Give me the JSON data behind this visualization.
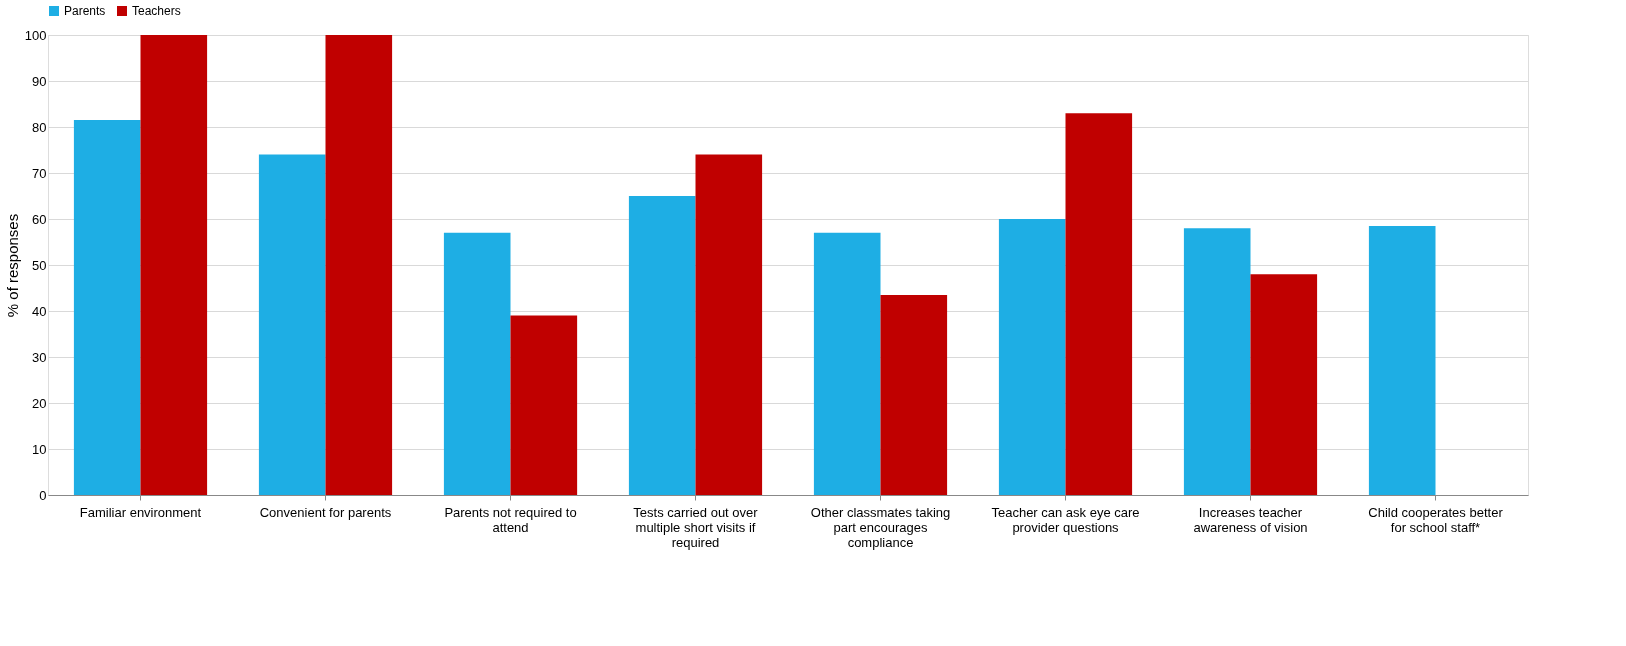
{
  "chart_data": {
    "type": "bar",
    "ylabel": "% of responses",
    "categories": [
      "Familiar  environment",
      "Convenient for parents",
      "Parents not required to attend",
      "Tests carried out over multiple short visits if required",
      "Other classmates taking part encourages compliance",
      "Teacher can ask eye care provider questions",
      "Increases teacher awareness of vision",
      "Child cooperates better for school staff*"
    ],
    "series": [
      {
        "name": "Parents",
        "color": "#1eaee4",
        "values": [
          81.5,
          74,
          57,
          65,
          57,
          60,
          58,
          58.5
        ]
      },
      {
        "name": "Teachers",
        "color": "#c00000",
        "values": [
          100,
          100,
          39,
          74,
          43.5,
          83,
          48,
          null
        ]
      }
    ],
    "ylim": [
      0,
      100
    ],
    "yticks": [
      0,
      10,
      20,
      30,
      40,
      50,
      60,
      70,
      80,
      90,
      100
    ],
    "grid": "y",
    "legend": "top"
  }
}
